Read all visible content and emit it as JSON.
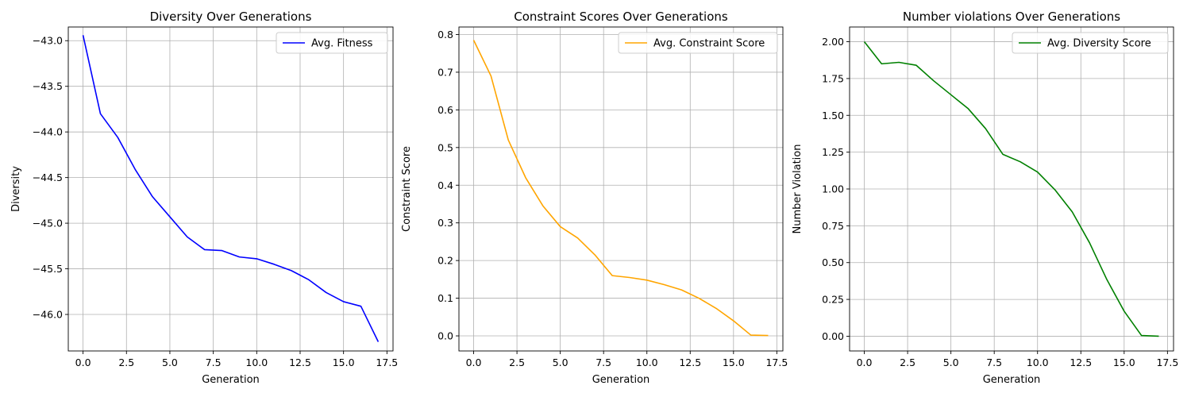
{
  "chart_data": [
    {
      "type": "line",
      "title": "Diversity Over Generations",
      "xlabel": "Generation",
      "ylabel": "Diversity",
      "xlim": [
        -0.85,
        17.85
      ],
      "ylim": [
        -46.4,
        -42.85
      ],
      "xticks": [
        0.0,
        2.5,
        5.0,
        7.5,
        10.0,
        12.5,
        15.0,
        17.5
      ],
      "xtick_labels": [
        "0.0",
        "2.5",
        "5.0",
        "7.5",
        "10.0",
        "12.5",
        "15.0",
        "17.5"
      ],
      "yticks": [
        -43.0,
        -43.5,
        -44.0,
        -44.5,
        -45.0,
        -45.5,
        -46.0
      ],
      "ytick_labels": [
        "−43.0",
        "−43.5",
        "−44.0",
        "−44.5",
        "−45.0",
        "−45.5",
        "−46.0"
      ],
      "grid": true,
      "legend_position": "top-right",
      "series": [
        {
          "name": "Avg. Fitness",
          "color": "#0000ff",
          "x": [
            0,
            1,
            2,
            3,
            4,
            5,
            6,
            7,
            8,
            9,
            10,
            11,
            12,
            13,
            14,
            15,
            16,
            17
          ],
          "y": [
            -42.94,
            -43.8,
            -44.06,
            -44.41,
            -44.71,
            -44.93,
            -45.15,
            -45.29,
            -45.3,
            -45.37,
            -45.39,
            -45.45,
            -45.52,
            -45.62,
            -45.76,
            -45.86,
            -45.91,
            -46.3
          ]
        }
      ]
    },
    {
      "type": "line",
      "title": "Constraint Scores Over Generations",
      "xlabel": "Generation",
      "ylabel": "Constraint Score",
      "xlim": [
        -0.85,
        17.85
      ],
      "ylim": [
        -0.04,
        0.82
      ],
      "xticks": [
        0.0,
        2.5,
        5.0,
        7.5,
        10.0,
        12.5,
        15.0,
        17.5
      ],
      "xtick_labels": [
        "0.0",
        "2.5",
        "5.0",
        "7.5",
        "10.0",
        "12.5",
        "15.0",
        "17.5"
      ],
      "yticks": [
        0.0,
        0.1,
        0.2,
        0.3,
        0.4,
        0.5,
        0.6,
        0.7,
        0.8
      ],
      "ytick_labels": [
        "0.0",
        "0.1",
        "0.2",
        "0.3",
        "0.4",
        "0.5",
        "0.6",
        "0.7",
        "0.8"
      ],
      "grid": true,
      "legend_position": "top-right",
      "series": [
        {
          "name": "Avg. Constraint Score",
          "color": "#ffa500",
          "x": [
            0,
            1,
            2,
            3,
            4,
            5,
            6,
            7,
            8,
            9,
            10,
            11,
            12,
            13,
            14,
            15,
            16,
            17
          ],
          "y": [
            0.785,
            0.69,
            0.52,
            0.42,
            0.345,
            0.29,
            0.26,
            0.215,
            0.16,
            0.155,
            0.148,
            0.136,
            0.122,
            0.1,
            0.073,
            0.04,
            0.002,
            0.001
          ]
        }
      ]
    },
    {
      "type": "line",
      "title": "Number violations Over Generations",
      "xlabel": "Generation",
      "ylabel": "Number Violation",
      "xlim": [
        -0.85,
        17.85
      ],
      "ylim": [
        -0.1,
        2.1
      ],
      "xticks": [
        0.0,
        2.5,
        5.0,
        7.5,
        10.0,
        12.5,
        15.0,
        17.5
      ],
      "xtick_labels": [
        "0.0",
        "2.5",
        "5.0",
        "7.5",
        "10.0",
        "12.5",
        "15.0",
        "17.5"
      ],
      "yticks": [
        0.0,
        0.25,
        0.5,
        0.75,
        1.0,
        1.25,
        1.5,
        1.75,
        2.0
      ],
      "ytick_labels": [
        "0.00",
        "0.25",
        "0.50",
        "0.75",
        "1.00",
        "1.25",
        "1.50",
        "1.75",
        "2.00"
      ],
      "grid": true,
      "legend_position": "top-right",
      "series": [
        {
          "name": "Avg. Diversity Score",
          "color": "#008000",
          "x": [
            0,
            1,
            2,
            3,
            4,
            5,
            6,
            7,
            8,
            9,
            10,
            11,
            12,
            13,
            14,
            15,
            16,
            17
          ],
          "y": [
            2.0,
            1.85,
            1.86,
            1.84,
            1.735,
            1.64,
            1.545,
            1.41,
            1.235,
            1.185,
            1.115,
            0.995,
            0.845,
            0.635,
            0.385,
            0.17,
            0.005,
            0.0
          ]
        }
      ]
    }
  ]
}
